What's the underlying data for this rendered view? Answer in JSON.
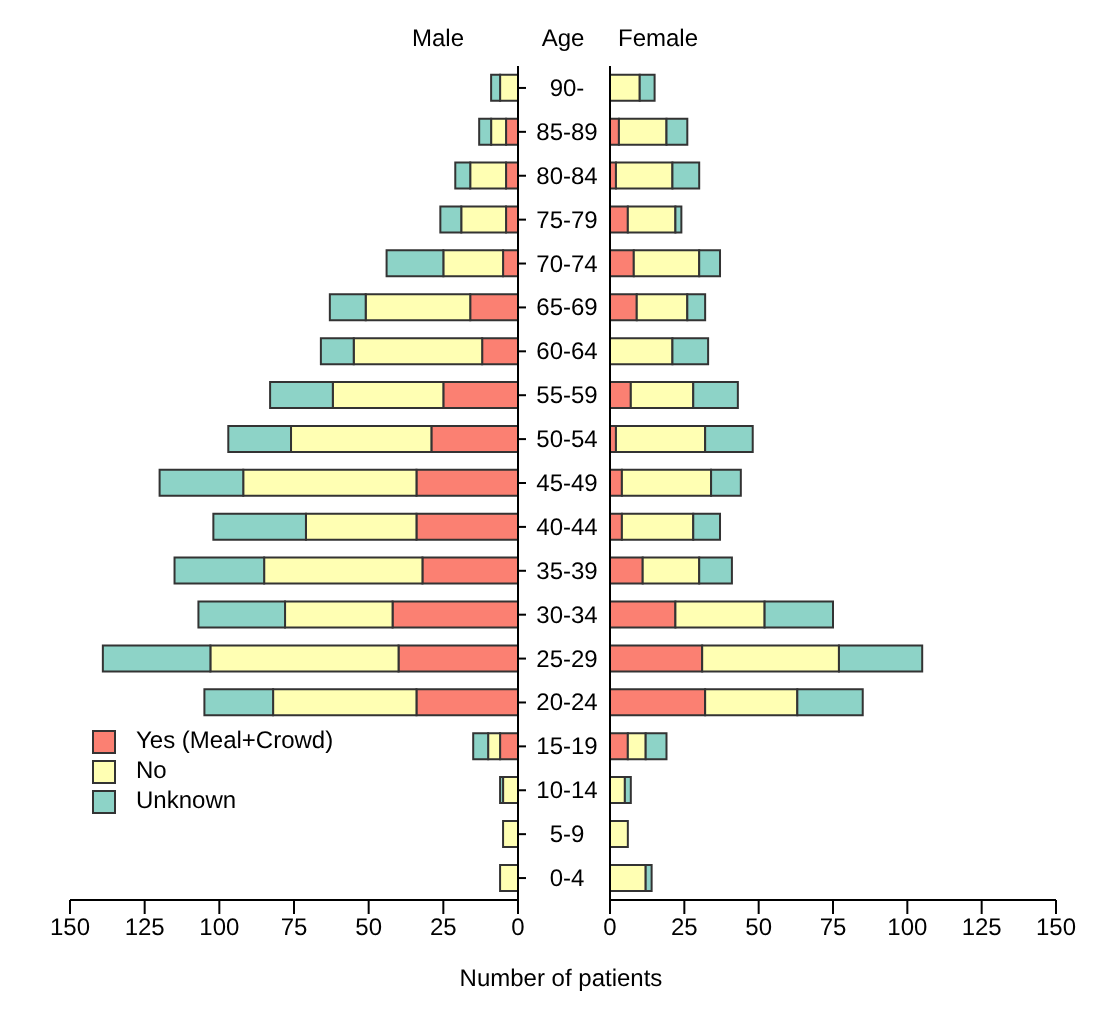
{
  "chart_data": [
    {
      "type": "bar",
      "orientation": "horizontal",
      "stacked": true,
      "title": "Male",
      "ylabel": "Age",
      "xlabel": "Number of patients",
      "categories": [
        "90-",
        "85-89",
        "80-84",
        "75-79",
        "70-74",
        "65-69",
        "60-64",
        "55-59",
        "50-54",
        "45-49",
        "40-44",
        "35-39",
        "30-34",
        "25-29",
        "20-24",
        "15-19",
        "10-14",
        "5-9",
        "0-4"
      ],
      "series": [
        {
          "name": "Yes (Meal+Crowd)",
          "color": "#fb8072",
          "values": [
            0,
            4,
            4,
            4,
            5,
            16,
            12,
            25,
            29,
            34,
            34,
            32,
            42,
            40,
            34,
            6,
            0,
            0,
            0
          ]
        },
        {
          "name": "No",
          "color": "#ffffb3",
          "values": [
            6,
            5,
            12,
            15,
            20,
            35,
            43,
            37,
            47,
            58,
            37,
            53,
            36,
            63,
            48,
            4,
            5,
            5,
            6
          ]
        },
        {
          "name": "Unknown",
          "color": "#8dd3c7",
          "values": [
            3,
            4,
            5,
            7,
            19,
            12,
            11,
            21,
            21,
            28,
            31,
            30,
            29,
            36,
            23,
            5,
            1,
            0,
            0
          ]
        }
      ],
      "xlim": [
        150,
        0
      ],
      "xticks": [
        150,
        125,
        100,
        75,
        50,
        25,
        0
      ],
      "legend": "bottom left"
    },
    {
      "type": "bar",
      "orientation": "horizontal",
      "stacked": true,
      "title": "Female",
      "series": [
        {
          "color": "#fb8072",
          "values": [
            0,
            3,
            2,
            6,
            8,
            9,
            0,
            7,
            2,
            4,
            4,
            11,
            22,
            31,
            32,
            6,
            0,
            0,
            0
          ]
        },
        {
          "color": "#ffffb3",
          "values": [
            10,
            16,
            19,
            16,
            22,
            17,
            21,
            21,
            30,
            30,
            24,
            19,
            30,
            46,
            31,
            6,
            5,
            6,
            12
          ]
        },
        {
          "color": "#8dd3c7",
          "values": [
            5,
            7,
            9,
            2,
            7,
            6,
            12,
            15,
            16,
            10,
            9,
            11,
            23,
            28,
            22,
            7,
            2,
            0,
            2
          ]
        }
      ],
      "xlim": [
        0,
        150
      ],
      "xticks": [
        0,
        25,
        50,
        75,
        100,
        125,
        150
      ],
      "tick_labels": "x"
    }
  ]
}
